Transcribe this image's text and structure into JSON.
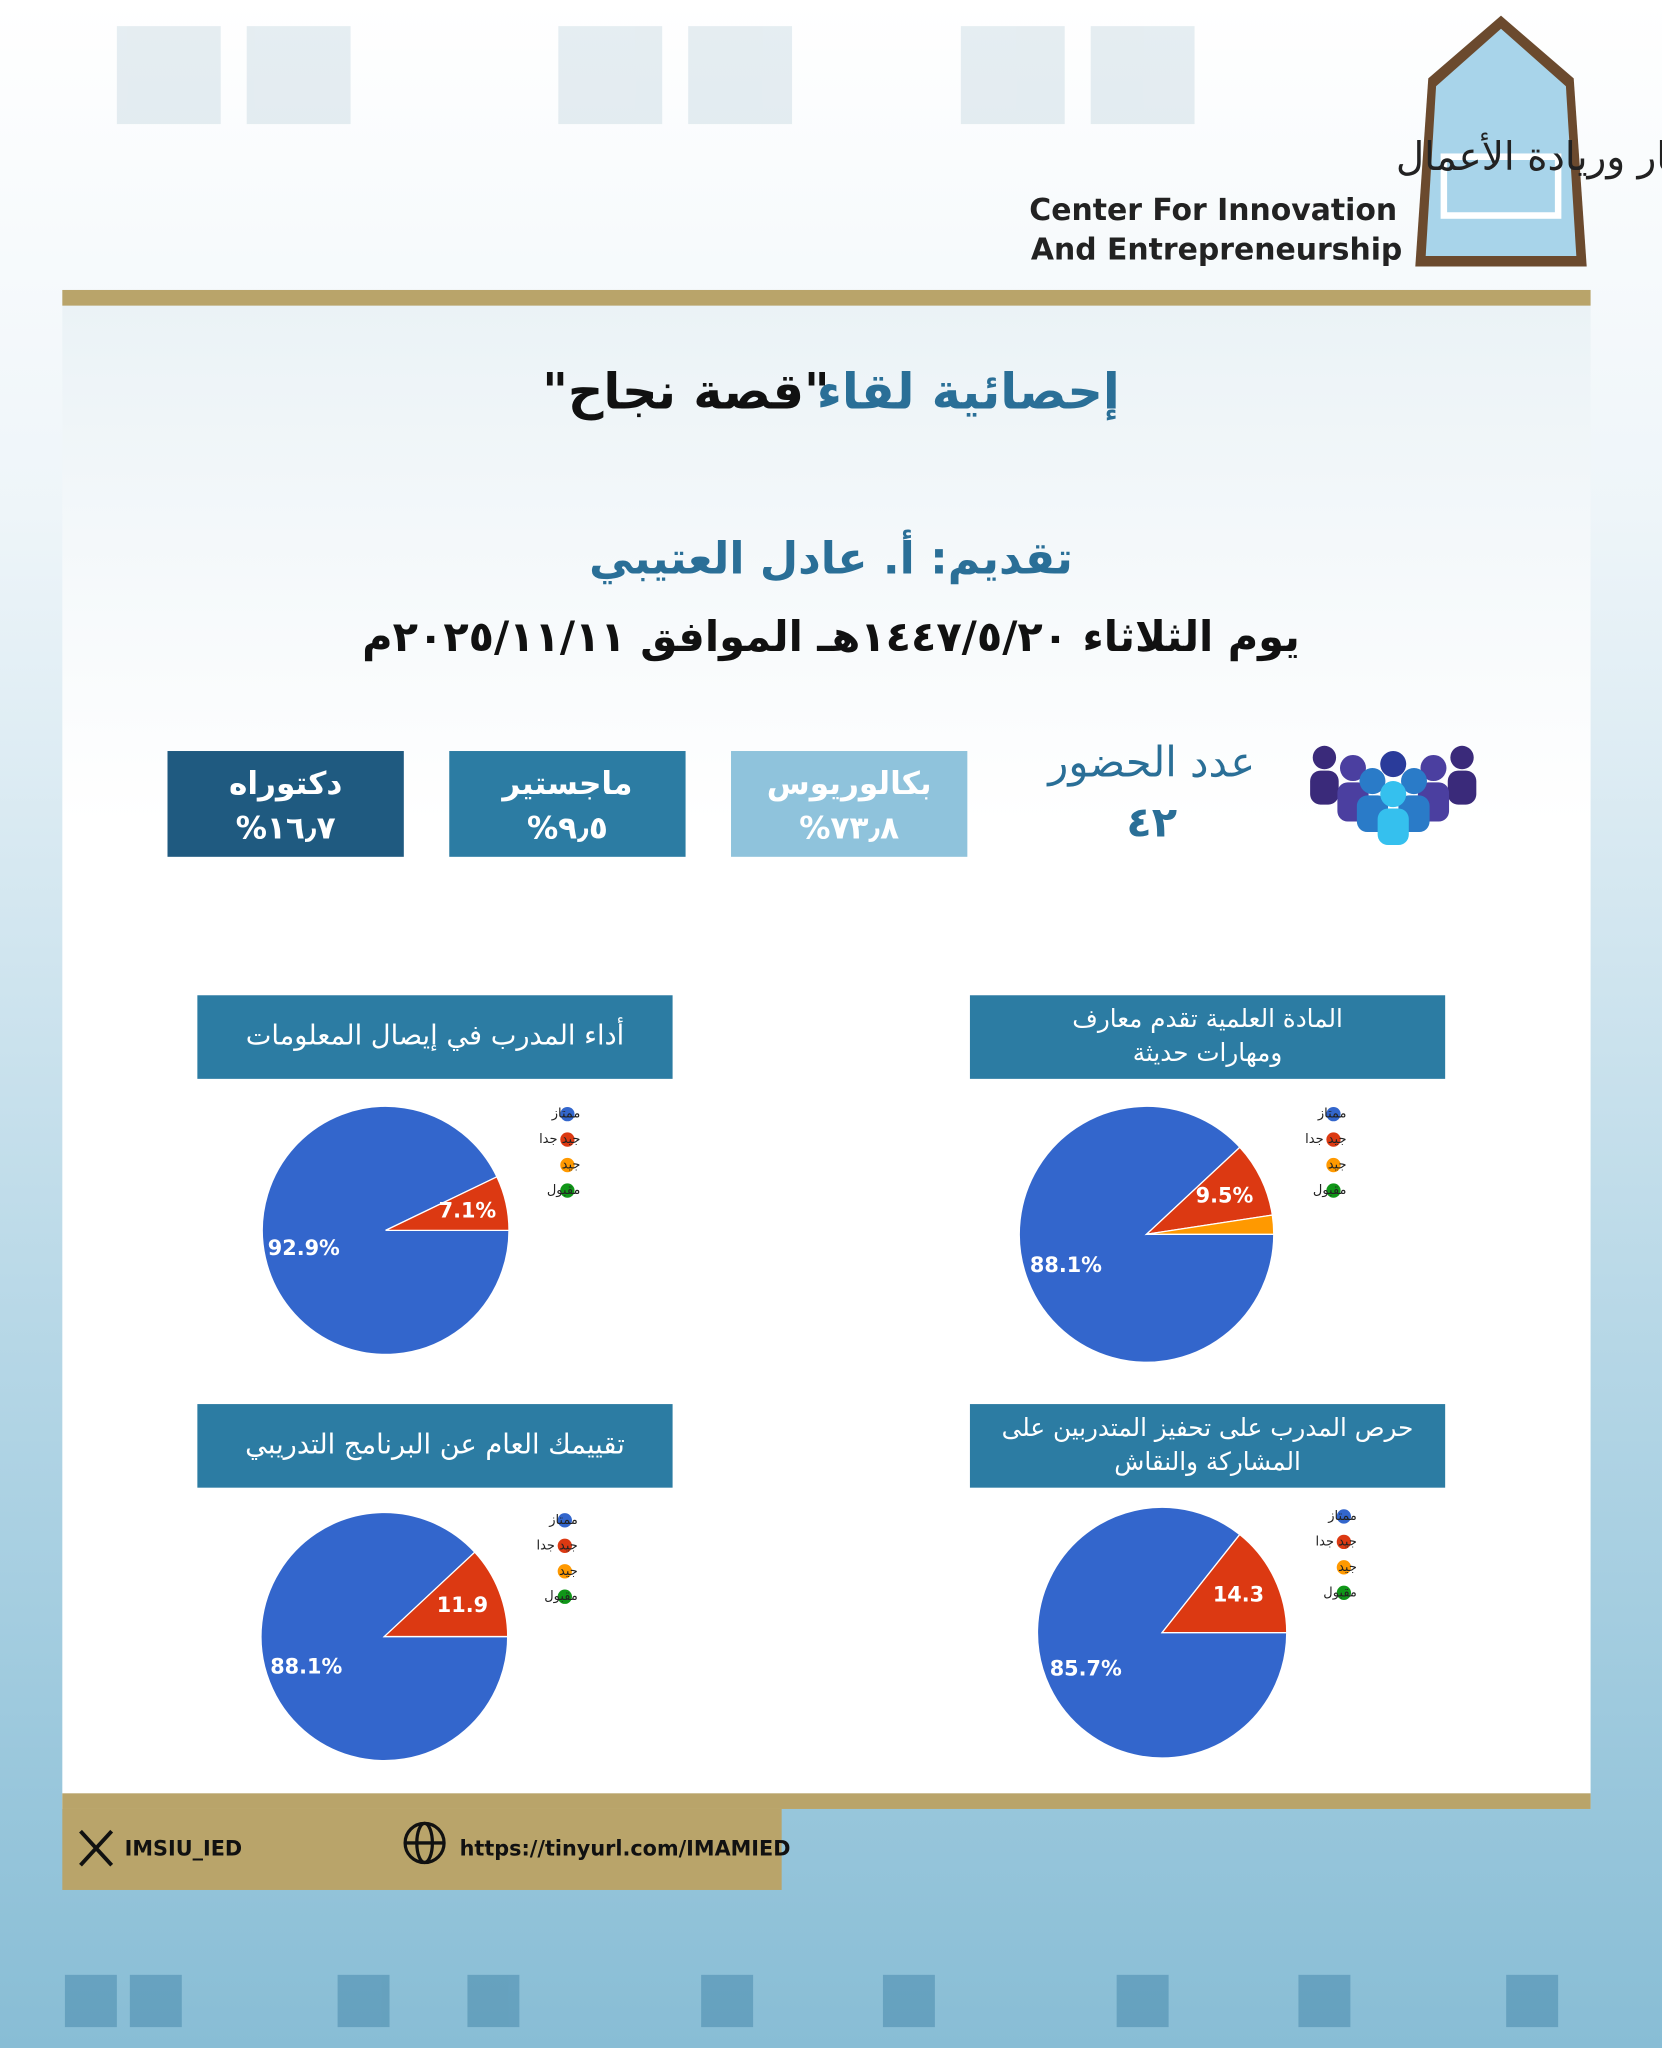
{
  "header": {
    "org_name_ar": "مركز الابتكار وريادة الأعمال",
    "org_name_en_1": "Center For Innovation",
    "org_name_en_2": "And Entrepreneurship"
  },
  "title_prefix": "إحصائية لقاء",
  "title_quote": "\"قصة نجاح\"",
  "presenter": "تقديم: أ. عادل العتيبي",
  "date": "يوم الثلاثاء ١٤٤٧/٥/٢٠هـ الموافق ٢٠٢٥/١١/١١م",
  "attendance": {
    "label": "عدد الحضور",
    "count": "٤٢"
  },
  "degrees": [
    {
      "name": "بكالوريوس",
      "percent": "%٧٣٫٨",
      "color": "#8fc3dc"
    },
    {
      "name": "ماجستير",
      "percent": "%٩٫٥",
      "color": "#2c7ca3"
    },
    {
      "name": "دكتوراه",
      "percent": "%١٦٫٧",
      "color": "#1f5a80"
    }
  ],
  "chart_data": [
    {
      "type": "pie",
      "title": [
        "المادة العلمية تقدم معارف",
        "ومهارات حديثة"
      ],
      "categories": [
        "ممتاز",
        "جيد جدا",
        "جيد",
        "مقبول"
      ],
      "values": [
        88.1,
        9.5,
        2.4,
        0
      ],
      "value_labels": [
        "88.1%",
        "9.5%",
        null,
        null
      ],
      "colors": [
        "#3366cc",
        "#dc3912",
        "#ff9900",
        "#109618"
      ]
    },
    {
      "type": "pie",
      "title": [
        "أداء المدرب في إيصال المعلومات"
      ],
      "categories": [
        "ممتاز",
        "جيد جدا",
        "جيد",
        "مقبول"
      ],
      "values": [
        92.9,
        7.1,
        0,
        0
      ],
      "value_labels": [
        "92.9%",
        "7.1%",
        null,
        null
      ],
      "colors": [
        "#3366cc",
        "#dc3912",
        "#ff9900",
        "#109618"
      ]
    },
    {
      "type": "pie",
      "title": [
        "حرص المدرب على تحفيز المتدربين على",
        "المشاركة والنقاش"
      ],
      "categories": [
        "ممتاز",
        "جيد جدا",
        "جيد",
        "مقبول"
      ],
      "values": [
        85.7,
        14.3,
        0,
        0
      ],
      "value_labels": [
        "85.7%",
        "14.3",
        null,
        null
      ],
      "colors": [
        "#3366cc",
        "#dc3912",
        "#ff9900",
        "#109618"
      ]
    },
    {
      "type": "pie",
      "title": [
        "تقييمك العام عن البرنامج التدريبي"
      ],
      "categories": [
        "ممتاز",
        "جيد جدا",
        "جيد",
        "مقبول"
      ],
      "values": [
        88.1,
        11.9,
        0,
        0
      ],
      "value_labels": [
        "88.1%",
        "11.9",
        null,
        null
      ],
      "colors": [
        "#3366cc",
        "#dc3912",
        "#ff9900",
        "#109618"
      ]
    }
  ],
  "footer": {
    "social": "IMSIU_IED",
    "url": "https://tinyurl.com/IMAMIED"
  }
}
